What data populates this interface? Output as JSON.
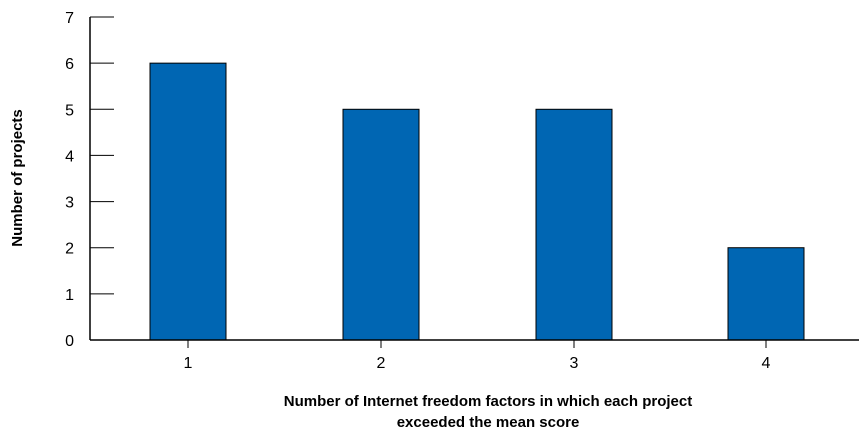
{
  "chart_data": {
    "type": "bar",
    "title": "",
    "categories": [
      "1",
      "2",
      "3",
      "4"
    ],
    "values": [
      6,
      5,
      5,
      2
    ],
    "xlabel_lines": [
      "Number of Internet freedom factors in which each project",
      "exceeded the mean score"
    ],
    "ylabel": "Number of projects",
    "ylim": [
      0,
      7
    ],
    "yticks": [
      "0",
      "1",
      "2",
      "3",
      "4",
      "5",
      "6",
      "7"
    ],
    "grid": false,
    "legend": "none",
    "bar_color": "#0066b3",
    "bar_stroke": "#000000"
  }
}
